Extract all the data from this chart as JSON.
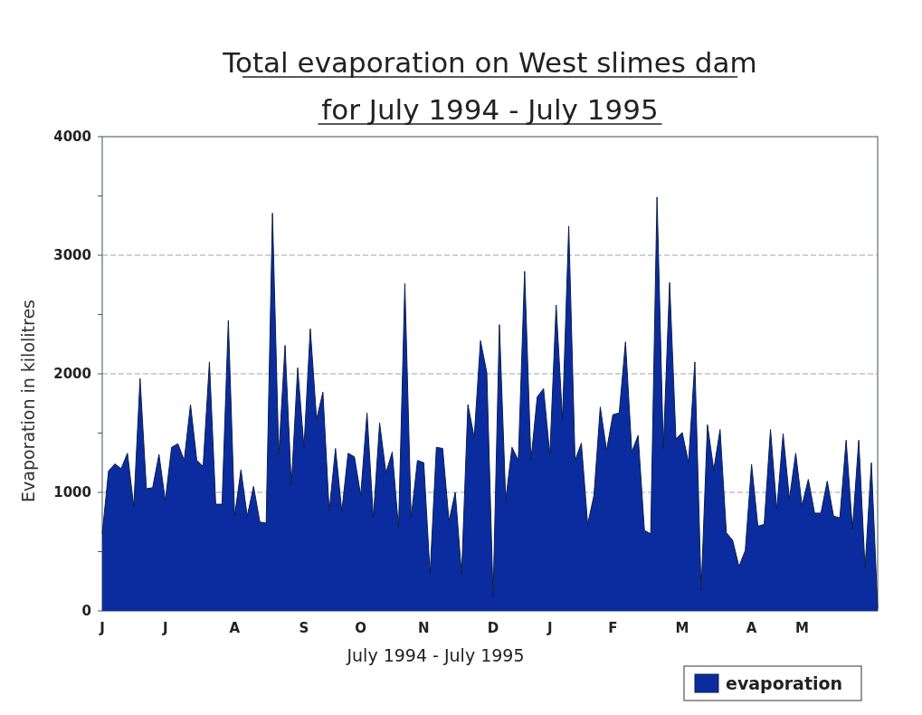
{
  "chart_data": {
    "type": "area",
    "title": "Total evaporation on West slimes dam\nfor July 1994 - July 1995",
    "xlabel": "July 1994 - July 1995",
    "ylabel": "Evaporation in kilolitres",
    "categories": [
      "J",
      null,
      null,
      null,
      null,
      null,
      null,
      null,
      null,
      null,
      "J",
      null,
      null,
      null,
      null,
      null,
      null,
      null,
      null,
      null,
      null,
      "A",
      null,
      null,
      null,
      null,
      null,
      null,
      null,
      null,
      null,
      null,
      "S",
      null,
      null,
      null,
      null,
      null,
      null,
      null,
      null,
      "O",
      null,
      null,
      null,
      null,
      null,
      null,
      null,
      null,
      null,
      "N",
      null,
      null,
      null,
      null,
      null,
      null,
      null,
      null,
      null,
      null,
      "D",
      null,
      null,
      null,
      null,
      null,
      null,
      null,
      null,
      "J",
      null,
      null,
      null,
      null,
      null,
      null,
      null,
      null,
      null,
      "F",
      null,
      null,
      null,
      null,
      null,
      null,
      null,
      null,
      null,
      null,
      "M",
      null,
      null,
      null,
      null,
      null,
      null,
      null,
      null,
      null,
      null,
      "A",
      null,
      null,
      null,
      null,
      null,
      null,
      null,
      "M",
      null,
      null,
      null,
      null,
      null,
      null,
      null,
      null,
      null,
      null,
      null,
      null
    ],
    "series": [
      {
        "name": "evaporation",
        "color": "#0b2c9e",
        "values": [
          650,
          1180,
          1240,
          1200,
          1330,
          880,
          1960,
          1030,
          1040,
          1320,
          930,
          1380,
          1410,
          1270,
          1740,
          1270,
          1220,
          2100,
          900,
          900,
          2450,
          800,
          1190,
          800,
          1050,
          750,
          740,
          3355,
          1315,
          2240,
          1060,
          2050,
          1380,
          2380,
          1615,
          1845,
          840,
          1370,
          840,
          1330,
          1300,
          975,
          1670,
          785,
          1585,
          1165,
          1340,
          700,
          2760,
          785,
          1270,
          1250,
          310,
          1380,
          1370,
          760,
          1000,
          310,
          1740,
          1465,
          2280,
          2010,
          120,
          2415,
          935,
          1380,
          1270,
          2865,
          1270,
          1805,
          1875,
          1315,
          2580,
          1615,
          3245,
          1270,
          1415,
          730,
          975,
          1720,
          1355,
          1655,
          1670,
          2270,
          1340,
          1480,
          680,
          650,
          3490,
          1370,
          2770,
          1450,
          1505,
          1250,
          2100,
          170,
          1570,
          1190,
          1530,
          660,
          595,
          375,
          510,
          1235,
          715,
          730,
          1530,
          855,
          1495,
          945,
          1330,
          890,
          1110,
          825,
          825,
          1095,
          800,
          785,
          1440,
          690,
          1440,
          360,
          1250,
          20
        ]
      }
    ],
    "ylim": [
      0,
      4000
    ],
    "yticks": [
      0,
      {
        "value": 500,
        "label": null
      },
      1000,
      {
        "value": 1500,
        "label": null
      },
      2000,
      {
        "value": 2500,
        "label": null
      },
      3000,
      {
        "value": 3500,
        "label": null
      },
      4000
    ],
    "grid": "y",
    "legend": "bottom right"
  }
}
